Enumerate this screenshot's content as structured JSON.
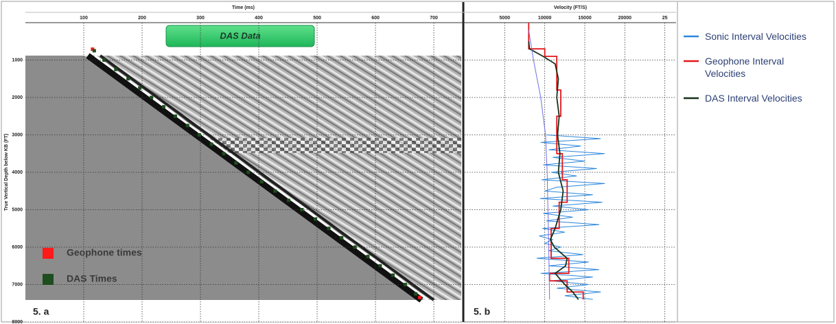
{
  "chart_data": [
    {
      "type": "scatter",
      "x_label": "Time (ms)",
      "y_label": "True Vertical Depth below KB (FT)",
      "annotation": "DAS Data",
      "panel_label": "5. a",
      "xlim": [
        0,
        747
      ],
      "ylim": [
        0,
        8000
      ],
      "y_inverted": true,
      "xticks": [
        100,
        200,
        300,
        400,
        500,
        600,
        700
      ],
      "yticks": [
        1000,
        2000,
        3000,
        4000,
        5000,
        6000,
        7000,
        8000
      ],
      "y_tick_labels": true,
      "grid": true,
      "legend": "lower left",
      "series": [
        {
          "name": "Geophone times",
          "color": "#ff1a1a",
          "x": [
            115,
            676
          ],
          "y": [
            710,
            7345
          ]
        },
        {
          "name": "DAS Times",
          "color": "#1e4d1e",
          "x": [
            118,
            135,
            155,
            176,
            196,
            216,
            237,
            257,
            278,
            298,
            319,
            340,
            361,
            382,
            405,
            428,
            451,
            474,
            497,
            520,
            542,
            565,
            587,
            608,
            630,
            651,
            669
          ],
          "y": [
            750,
            1000,
            1250,
            1500,
            1750,
            2000,
            2250,
            2500,
            2750,
            3000,
            3250,
            3500,
            3750,
            4000,
            4250,
            4500,
            4750,
            5000,
            5250,
            5500,
            5750,
            6000,
            6250,
            6500,
            6750,
            7000,
            7250
          ]
        }
      ]
    },
    {
      "type": "line",
      "x_label": "Velocity (FT/S)",
      "panel_label": "5. b",
      "xlim": [
        0,
        26400
      ],
      "ylim": [
        0,
        8000
      ],
      "y_inverted": true,
      "xticks": [
        5000,
        10000,
        15000,
        20000,
        {
          "value": 25000,
          "label": "25"
        }
      ],
      "yticks": [
        1000,
        2000,
        3000,
        4000,
        5000,
        6000,
        7000,
        8000
      ],
      "y_tick_labels": false,
      "grid": true,
      "legend": "right",
      "series": [
        {
          "name": "Sonic Interval Velocities",
          "color": "#2a86db",
          "x": [
            10200,
            17000,
            9500,
            14500,
            10500,
            17500,
            11000,
            15000,
            9800,
            16500,
            10800,
            14000,
            9600,
            17500,
            11500,
            10000,
            16000,
            9400,
            17200,
            11000,
            15500,
            9800,
            13500,
            10200,
            16800,
            9700,
            12500,
            9300,
            11000,
            10000,
            12000,
            10500,
            14800,
            9000,
            15500,
            10500,
            16800,
            9500,
            16000,
            10800,
            15500,
            11500,
            17000,
            12500,
            16000
          ],
          "y": [
            3000,
            3100,
            3200,
            3300,
            3400,
            3500,
            3600,
            3700,
            3800,
            3900,
            4000,
            4100,
            4200,
            4300,
            4400,
            4500,
            4600,
            4700,
            4800,
            4900,
            5000,
            5100,
            5200,
            5300,
            5400,
            5500,
            5600,
            5700,
            5800,
            5900,
            6000,
            6100,
            6200,
            6300,
            6400,
            6500,
            6600,
            6700,
            6800,
            6900,
            7000,
            7100,
            7200,
            7300,
            7400
          ]
        },
        {
          "name": "Geophone Interval Velocities",
          "color": "#e3161b",
          "x": [
            8000,
            8000,
            10000,
            10000,
            11500,
            11500,
            12000,
            12000,
            11500,
            11500,
            12200,
            12200,
            12800,
            12800,
            11800,
            11800,
            10800,
            10800,
            13000,
            13000,
            10600,
            10600,
            12800,
            12800,
            14800,
            14800
          ],
          "y": [
            0,
            700,
            700,
            900,
            900,
            1800,
            1800,
            2500,
            2500,
            3500,
            3500,
            4200,
            4200,
            4800,
            4800,
            5500,
            5500,
            6300,
            6300,
            6700,
            6700,
            6900,
            6900,
            7200,
            7200,
            7400
          ]
        },
        {
          "name": "DAS Interval Velocities",
          "color": "#17301a",
          "x": [
            8000,
            8100,
            9800,
            11300,
            11700,
            11500,
            11800,
            11600,
            11900,
            11700,
            12300,
            12000,
            11300,
            10700,
            11200,
            12800,
            12600,
            11300,
            12500,
            13500,
            14200
          ],
          "y": [
            500,
            700,
            900,
            1100,
            1500,
            2000,
            2500,
            3000,
            3500,
            4000,
            4500,
            5000,
            5500,
            5800,
            6000,
            6300,
            6500,
            6700,
            7000,
            7200,
            7400
          ]
        },
        {
          "color": "#6f6fe6",
          "x": [
            8000,
            8600,
            9500,
            10100,
            10300,
            10400,
            10500,
            10600
          ],
          "y": [
            200,
            1000,
            2000,
            3000,
            4000,
            5000,
            6000,
            7400
          ]
        }
      ]
    }
  ]
}
